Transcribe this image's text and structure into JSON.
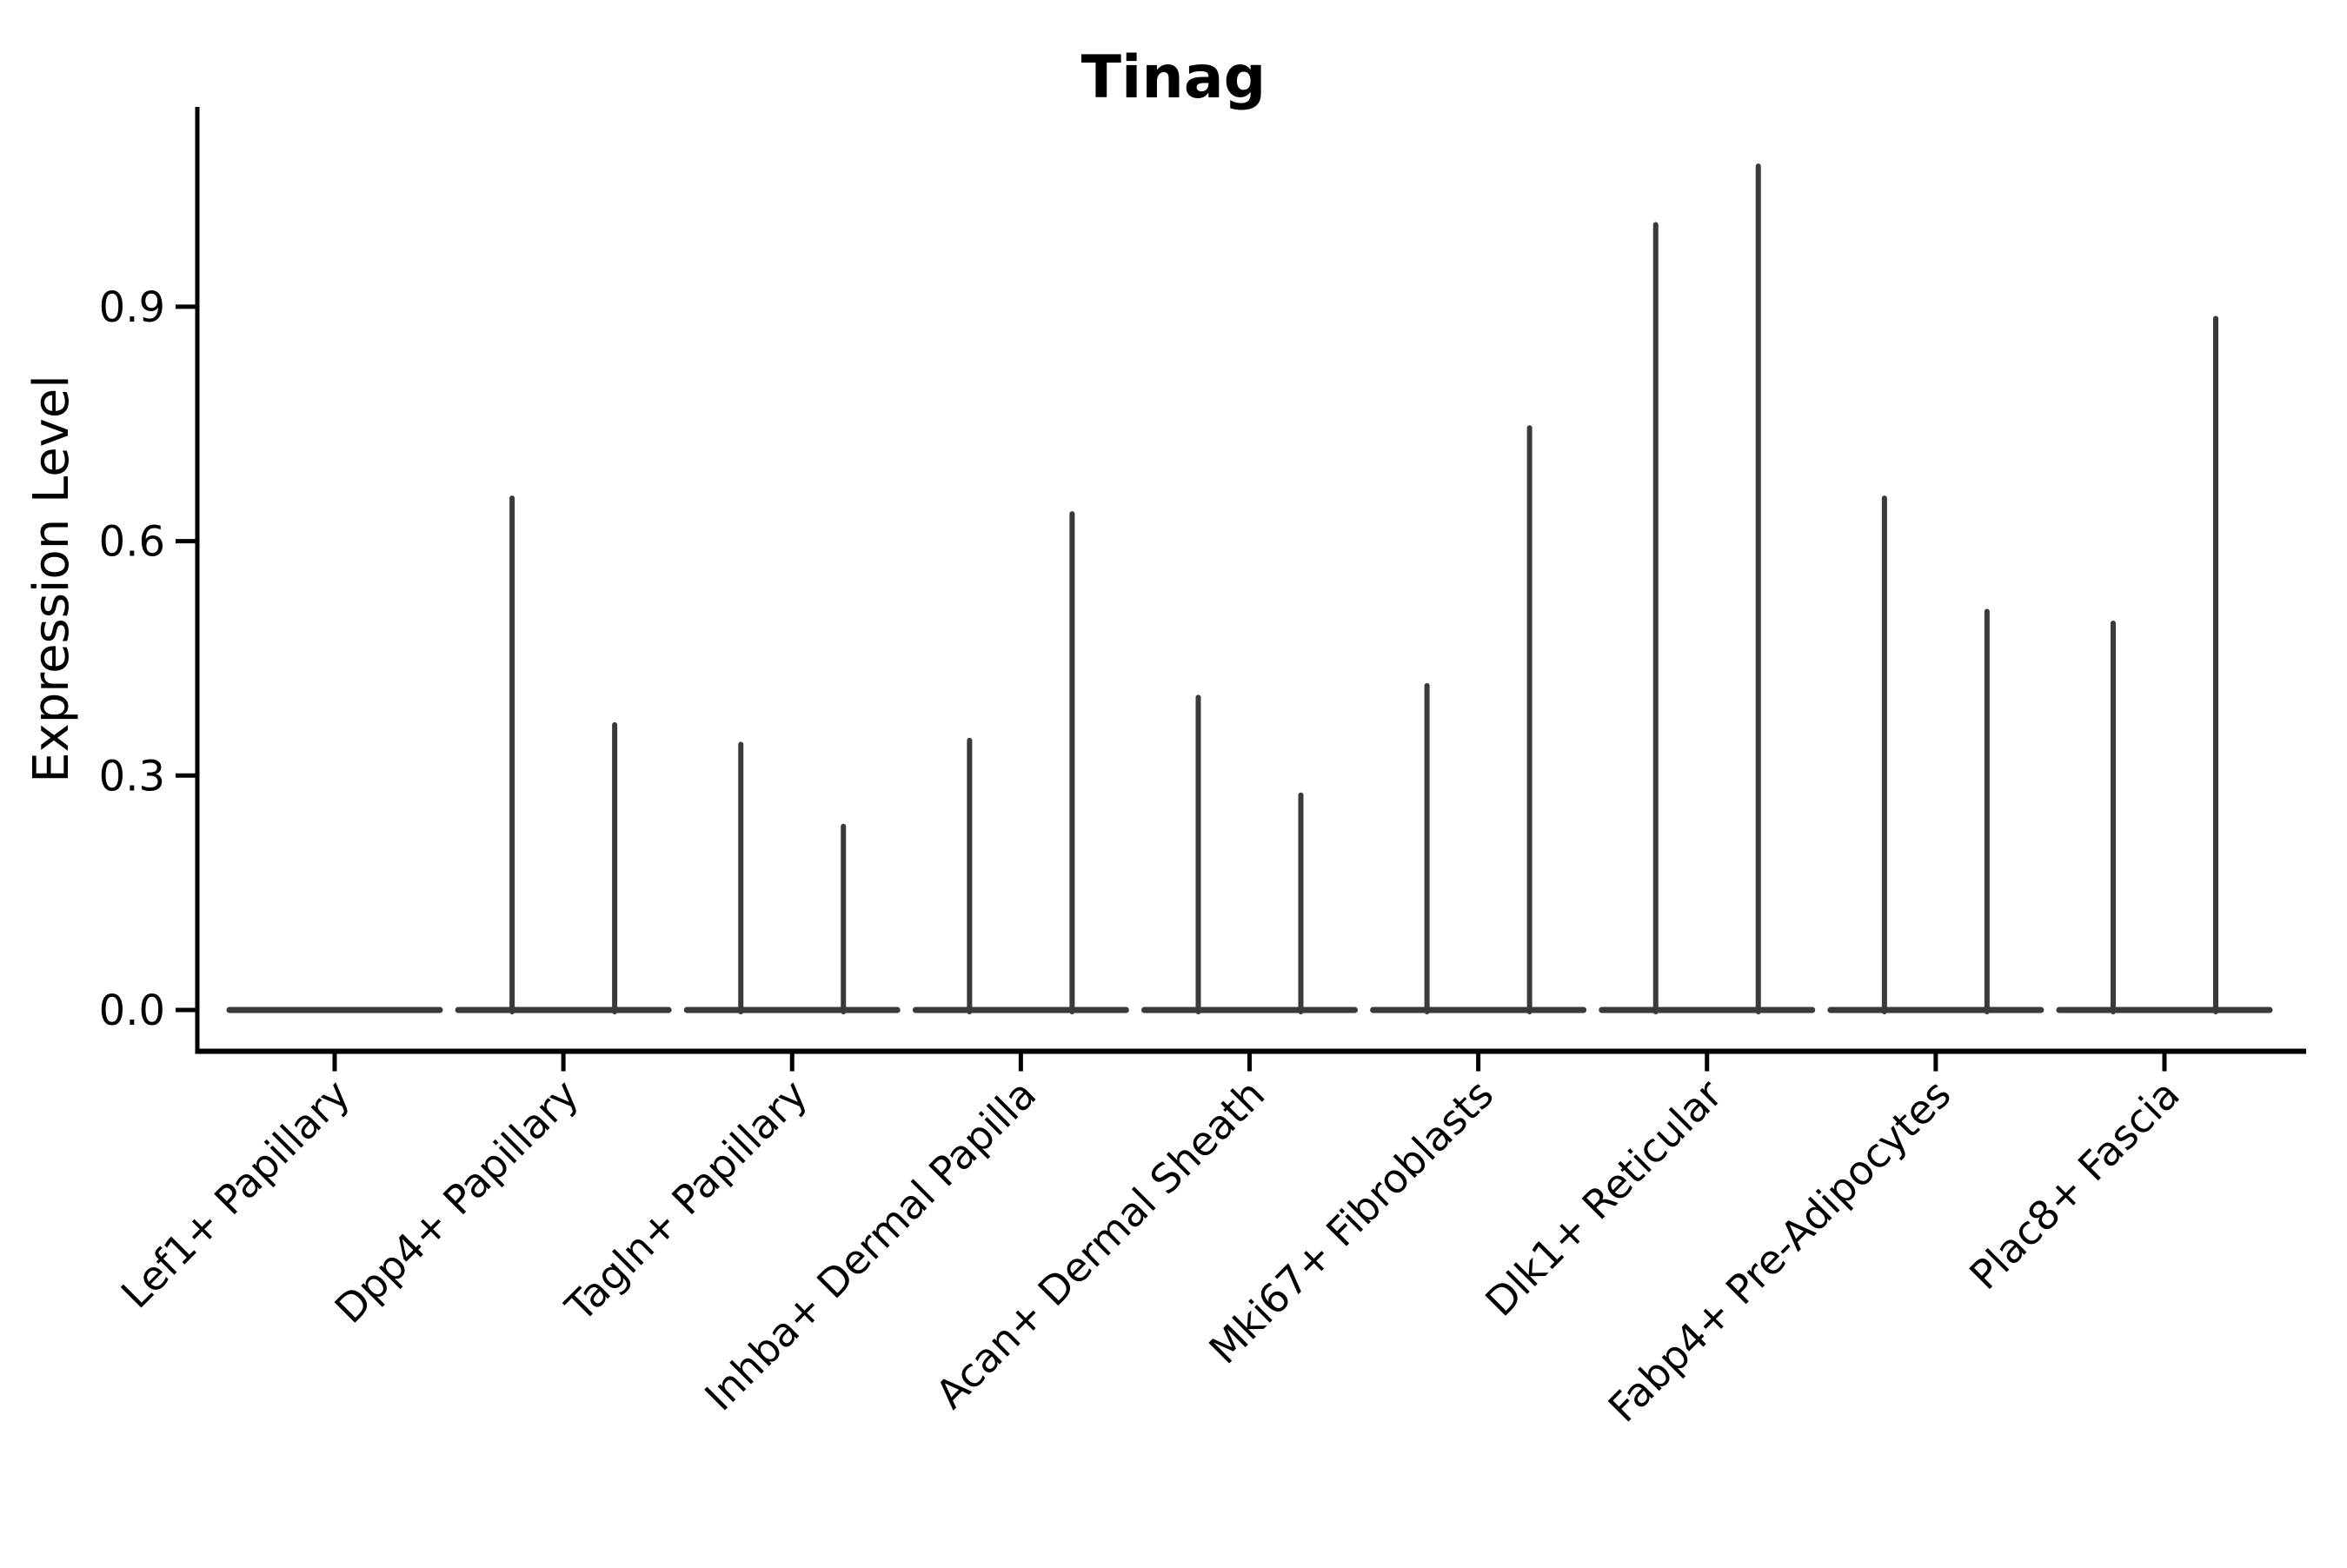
{
  "chart_data": {
    "type": "violin",
    "title": "Tinag",
    "ylabel": "Expression Level",
    "xlabel": "",
    "grid": false,
    "legend": "none",
    "ylim": [
      -0.05,
      1.16
    ],
    "yticks": [
      0.0,
      0.3,
      0.6,
      0.9
    ],
    "ytick_labels": [
      "0.0",
      "0.3",
      "0.6",
      "0.9"
    ],
    "categories": [
      "Lef1+ Papillary",
      "Dpp4+ Papillary",
      "Tagln+ Papillary",
      "Inhba+ Dermal Papilla",
      "Acan+ Dermal Sheath",
      "Mki67+ Fibroblasts",
      "Dlk1+ Reticular",
      "Fabp4+ Pre-Adipocytes",
      "Plac8+ Fascia"
    ],
    "violins_per_category": 2,
    "baseline_value": 0.0,
    "series": [
      {
        "name": "violin-left",
        "max_values": [
          0.0,
          0.655,
          0.34,
          0.345,
          0.4,
          0.415,
          1.005,
          0.655,
          0.495
        ]
      },
      {
        "name": "violin-right",
        "max_values": [
          0.0,
          0.365,
          0.235,
          0.635,
          0.275,
          0.745,
          1.08,
          0.51,
          0.885
        ]
      }
    ],
    "colors": {
      "violin_outline": "#3A3A3A",
      "axis": "#000000",
      "text": "#000000",
      "background": "#FFFFFF"
    }
  }
}
